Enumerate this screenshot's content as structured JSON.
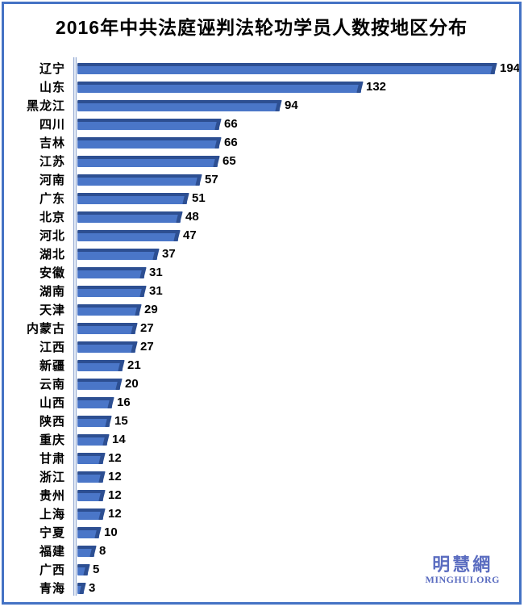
{
  "title": "2016年中共法庭诬判法轮功学员人数按地区分布",
  "watermark": {
    "cjk": "明慧網",
    "latin": "MINGHUI.ORG"
  },
  "colors": {
    "frame_border": "#4472c4",
    "bar_fill": "#4a76c8",
    "bar_edge": "#2d4f92",
    "axis_line": "#93a9d1",
    "text": "#000000",
    "watermark": "#5a6cc0"
  },
  "chart_data": {
    "type": "bar",
    "orientation": "horizontal",
    "title": "2016年中共法庭诬判法轮功学员人数按地区分布",
    "xlabel": "",
    "ylabel": "",
    "xlim": [
      0,
      200
    ],
    "grid": false,
    "legend": "none",
    "value_labels": true,
    "categories": [
      "辽宁",
      "山东",
      "黑龙江",
      "四川",
      "吉林",
      "江苏",
      "河南",
      "广东",
      "北京",
      "河北",
      "湖北",
      "安徽",
      "湖南",
      "天津",
      "内蒙古",
      "江西",
      "新疆",
      "云南",
      "山西",
      "陕西",
      "重庆",
      "甘肃",
      "浙江",
      "贵州",
      "上海",
      "宁夏",
      "福建",
      "广西",
      "青海"
    ],
    "values": [
      194,
      132,
      94,
      66,
      66,
      65,
      57,
      51,
      48,
      47,
      37,
      31,
      31,
      29,
      27,
      27,
      21,
      20,
      16,
      15,
      14,
      12,
      12,
      12,
      12,
      10,
      8,
      5,
      3
    ]
  }
}
